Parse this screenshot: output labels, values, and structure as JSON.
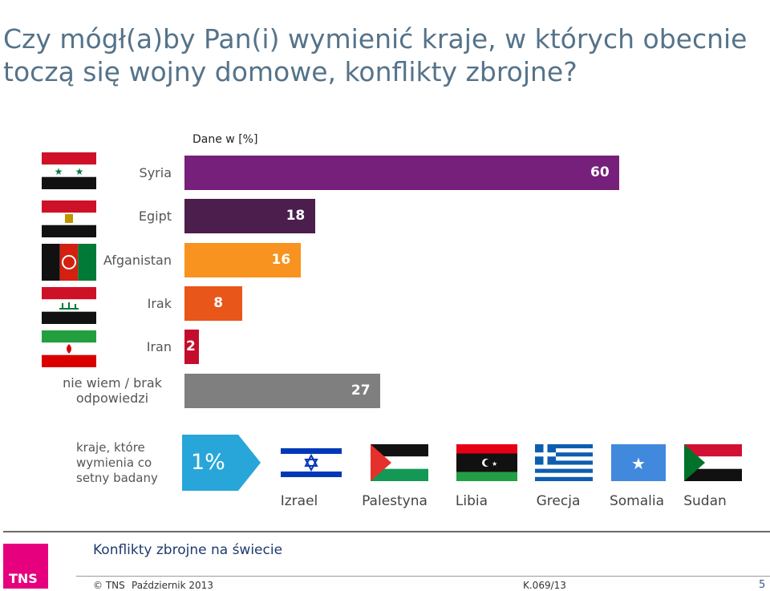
{
  "title": "Czy mógł(a)by Pan(i) wymienić kraje, w których obecnie toczą się wojny domowe, konflikty zbrojne?",
  "unit_label": "Dane w [%]",
  "colors": {
    "Syria": "#76207c",
    "Egipt": "#4b1e4e",
    "Afganistan": "#f7931e",
    "Irak": "#e8561a",
    "Iran": "#c40d2c",
    "nie wiem / brak odpowiedzi": "#7f7f7f",
    "arrow": "#29a6d9",
    "title": "#55738a",
    "tns": "#e6007e"
  },
  "chart_data": {
    "type": "bar",
    "orientation": "horizontal",
    "categories": [
      "Syria",
      "Egipt",
      "Afganistan",
      "Irak",
      "Iran",
      "nie wiem / brak odpowiedzi"
    ],
    "values": [
      60,
      18,
      16,
      8,
      2,
      27
    ],
    "title": "",
    "xlabel": "",
    "ylabel": "",
    "xlim": [
      0,
      60
    ],
    "grid": false,
    "legend": "none"
  },
  "flags": [
    "syria-flag-icon",
    "egypt-flag-icon",
    "afghanistan-flag-icon",
    "iraq-flag-icon",
    "iran-flag-icon"
  ],
  "extra": {
    "label": "kraje, które wymienia co setny badany",
    "value": "1%",
    "countries": [
      "Izrael",
      "Palestyna",
      "Libia",
      "Grecja",
      "Somalia",
      "Sudan"
    ]
  },
  "footer": {
    "title": "Konflikty zbrojne na świecie",
    "copyright": "© TNS",
    "date": "Październik 2013",
    "code": "K.069/13",
    "page": "5",
    "logo_text": "TNS"
  }
}
